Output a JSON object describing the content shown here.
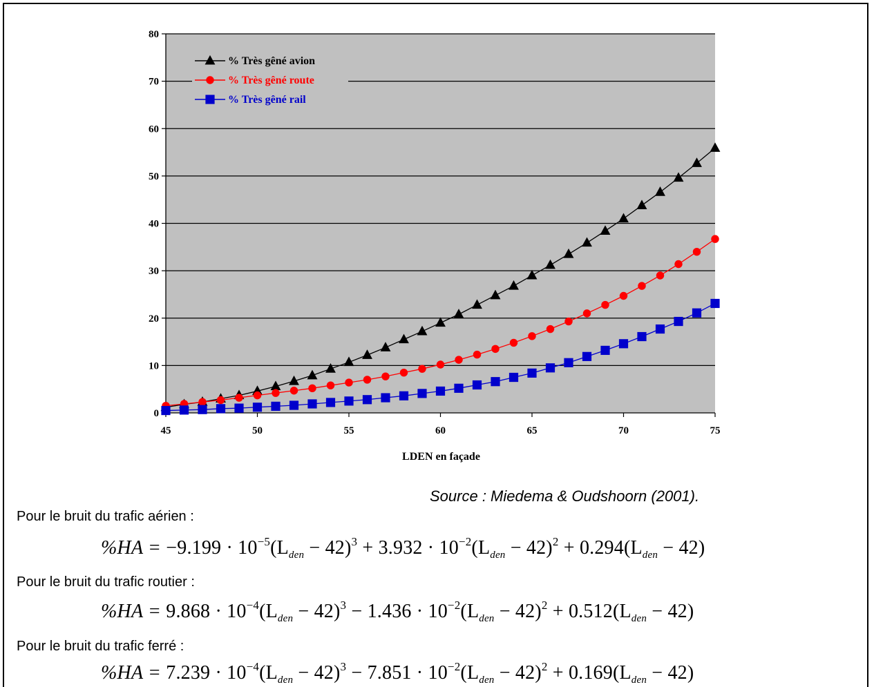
{
  "chart_data": {
    "type": "line",
    "xlabel": "LDEN en façade",
    "ylabel": "",
    "xlim": [
      45,
      75
    ],
    "ylim": [
      0,
      80
    ],
    "xticks": [
      45,
      50,
      55,
      60,
      65,
      70,
      75
    ],
    "yticks": [
      0,
      10,
      20,
      30,
      40,
      50,
      60,
      70,
      80
    ],
    "grid": "horizontal",
    "legend_position": "top-left",
    "background": "#c0c0c0",
    "x": [
      45,
      46,
      47,
      48,
      49,
      50,
      51,
      52,
      53,
      54,
      55,
      56,
      57,
      58,
      59,
      60,
      61,
      62,
      63,
      64,
      65,
      66,
      67,
      68,
      69,
      70,
      71,
      72,
      73,
      74,
      75
    ],
    "series": [
      {
        "name": "% Très gêné avion",
        "color": "#000000",
        "marker": "triangle",
        "values": [
          1.2,
          1.8,
          2.3,
          3.0,
          3.7,
          4.6,
          5.6,
          6.7,
          7.9,
          9.3,
          10.7,
          12.2,
          13.8,
          15.5,
          17.2,
          19.0,
          20.8,
          22.8,
          24.8,
          26.8,
          29.0,
          31.2,
          33.5,
          35.9,
          38.4,
          41.0,
          43.8,
          46.6,
          49.6,
          52.7,
          55.9
        ]
      },
      {
        "name": "% Très gêné route",
        "color": "#ff0000",
        "marker": "circle",
        "values": [
          1.5,
          1.9,
          2.3,
          2.7,
          3.2,
          3.7,
          4.2,
          4.7,
          5.2,
          5.8,
          6.4,
          7.0,
          7.7,
          8.5,
          9.3,
          10.2,
          11.2,
          12.3,
          13.5,
          14.8,
          16.2,
          17.7,
          19.3,
          21.0,
          22.8,
          24.7,
          26.8,
          29.0,
          31.4,
          34.0,
          36.7
        ]
      },
      {
        "name": "% Très gêné rail",
        "color": "#0000cc",
        "marker": "square",
        "values": [
          0.5,
          0.6,
          0.7,
          0.9,
          1.0,
          1.2,
          1.4,
          1.6,
          1.9,
          2.2,
          2.5,
          2.8,
          3.2,
          3.6,
          4.1,
          4.6,
          5.2,
          5.9,
          6.6,
          7.5,
          8.4,
          9.5,
          10.6,
          11.9,
          13.2,
          14.6,
          16.1,
          17.7,
          19.3,
          21.1,
          23.1
        ]
      }
    ]
  },
  "source": "Source : Miedema & Oudshoorn (2001).",
  "sections": [
    {
      "intro": "Pour le bruit du trafic aérien :",
      "formula": {
        "lhs": "%HA = ",
        "c1": "−9.199 · 10",
        "e1": "−5",
        "c2": " + 3.932 · 10",
        "e2": "−2",
        "c3": " + 0.294"
      }
    },
    {
      "intro": "Pour le bruit du trafic routier :",
      "formula": {
        "lhs": "%HA = ",
        "c1": "9.868 · 10",
        "e1": "−4",
        "c2": " − 1.436 · 10",
        "e2": "−2",
        "c3": " + 0.512"
      }
    },
    {
      "intro": "Pour le bruit du trafic ferré :",
      "formula": {
        "lhs": "%HA = ",
        "c1": "7.239 · 10",
        "e1": "−4",
        "c2": " − 7.851 · 10",
        "e2": "−2",
        "c3": " + 0.169"
      }
    }
  ],
  "formula_parts": {
    "term_open": "(L",
    "subscript": "den",
    "term_close": " − 42)",
    "cube": "3",
    "square": "2"
  }
}
